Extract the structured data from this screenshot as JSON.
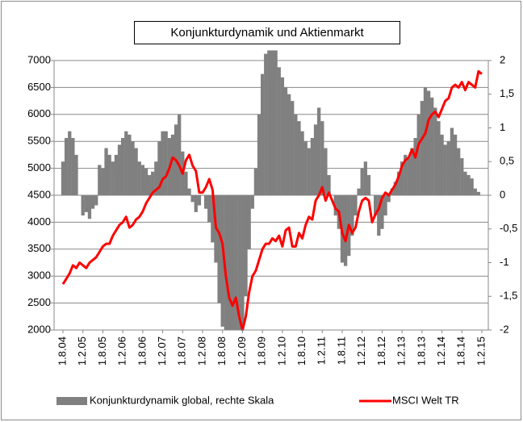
{
  "chart_data": {
    "type": "combo",
    "title": "Konjunkturdynamik und Aktienmarkt",
    "categories": [
      "1.8.04",
      null,
      null,
      null,
      null,
      null,
      "1.2.05",
      null,
      null,
      null,
      null,
      null,
      "1.8.05",
      null,
      null,
      null,
      null,
      null,
      "1.2.06",
      null,
      null,
      null,
      null,
      null,
      "1.8.06",
      null,
      null,
      null,
      null,
      null,
      "1.2.07",
      null,
      null,
      null,
      null,
      null,
      "1.8.07",
      null,
      null,
      null,
      null,
      null,
      "1.2.08",
      null,
      null,
      null,
      null,
      null,
      "1.8.08",
      null,
      null,
      null,
      null,
      null,
      "1.2.09",
      null,
      null,
      null,
      null,
      null,
      "1.8.09",
      null,
      null,
      null,
      null,
      null,
      "1.2.10",
      null,
      null,
      null,
      null,
      null,
      "1.8.10",
      null,
      null,
      null,
      null,
      null,
      "1.2.11",
      null,
      null,
      null,
      null,
      null,
      "1.8.11",
      null,
      null,
      null,
      null,
      null,
      "1.2.12",
      null,
      null,
      null,
      null,
      null,
      "1.8.12",
      null,
      null,
      null,
      null,
      null,
      "1.2.13",
      null,
      null,
      null,
      null,
      null,
      "1.8.13",
      null,
      null,
      null,
      null,
      null,
      "1.2.14",
      null,
      null,
      null,
      null,
      null,
      "1.8.14",
      null,
      null,
      null,
      null,
      null,
      "1.2.15"
    ],
    "series": [
      {
        "name": "Konjunkturdynamik global, rechte Skala",
        "type": "bar",
        "axis": "y2",
        "color": "#808080",
        "values": [
          0.5,
          0.85,
          0.95,
          0.85,
          0.6,
          0.0,
          -0.3,
          -0.25,
          -0.35,
          -0.2,
          -0.15,
          0.45,
          0.4,
          0.7,
          0.6,
          0.5,
          0.6,
          0.75,
          0.85,
          0.95,
          0.9,
          0.8,
          0.7,
          0.5,
          0.45,
          0.4,
          0.3,
          0.35,
          0.5,
          0.8,
          0.95,
          0.95,
          0.85,
          0.9,
          1.05,
          1.2,
          0.65,
          0.35,
          0.1,
          -0.1,
          -0.25,
          -0.15,
          0.0,
          -0.2,
          -0.4,
          -0.7,
          -1.0,
          -1.6,
          -1.95,
          -2.0,
          -2.0,
          -2.0,
          -2.0,
          -2.0,
          -2.0,
          -1.5,
          -0.8,
          -0.2,
          0.4,
          1.2,
          1.8,
          2.1,
          2.15,
          2.15,
          2.15,
          1.9,
          1.75,
          1.6,
          1.5,
          1.4,
          1.2,
          1.1,
          0.95,
          0.8,
          0.7,
          0.85,
          1.05,
          1.3,
          1.1,
          0.7,
          0.3,
          0.0,
          -0.3,
          -0.5,
          -1.0,
          -1.05,
          -0.9,
          -0.6,
          -0.3,
          0.1,
          0.4,
          0.5,
          0.3,
          0.0,
          -0.3,
          -0.6,
          -0.5,
          -0.3,
          -0.1,
          0.1,
          0.2,
          0.35,
          0.5,
          0.6,
          0.55,
          0.7,
          0.85,
          1.2,
          1.4,
          1.6,
          1.55,
          1.45,
          1.3,
          1.1,
          0.9,
          0.75,
          0.8,
          1.0,
          0.9,
          0.7,
          0.55,
          0.35,
          0.3,
          0.25,
          0.1,
          0.05,
          0.0
        ]
      },
      {
        "name": "MSCI Welt TR",
        "type": "line",
        "axis": "y",
        "color": "#ff0000",
        "values": [
          2850,
          2950,
          3050,
          3200,
          3150,
          3250,
          3200,
          3150,
          3250,
          3300,
          3350,
          3450,
          3550,
          3600,
          3600,
          3750,
          3850,
          3950,
          4000,
          4100,
          3900,
          3950,
          4050,
          4100,
          4200,
          4350,
          4450,
          4550,
          4600,
          4650,
          4800,
          4850,
          5000,
          5200,
          5150,
          5050,
          4900,
          5150,
          5250,
          5050,
          4950,
          4550,
          4550,
          4650,
          4800,
          4600,
          3900,
          3800,
          3600,
          3000,
          2600,
          2450,
          2600,
          2250,
          2000,
          2250,
          2700,
          3000,
          3100,
          3300,
          3500,
          3600,
          3600,
          3700,
          3650,
          3750,
          3550,
          3850,
          3900,
          3550,
          3550,
          3800,
          3700,
          3950,
          4100,
          4050,
          4400,
          4500,
          4650,
          4400,
          4550,
          4400,
          4250,
          4200,
          3800,
          3650,
          3950,
          3800,
          3900,
          4200,
          4400,
          4450,
          4400,
          4000,
          4150,
          4250,
          4450,
          4550,
          4500,
          4600,
          4700,
          4850,
          5050,
          5150,
          5200,
          5350,
          5200,
          5450,
          5550,
          5650,
          5900,
          6000,
          6050,
          5950,
          6100,
          6250,
          6300,
          6500,
          6550,
          6500,
          6600,
          6450,
          6600,
          6550,
          6500,
          6800,
          6750
        ]
      }
    ],
    "ylim": [
      2000,
      7000
    ],
    "yticks": [
      2000,
      2500,
      3000,
      3500,
      4000,
      4500,
      5000,
      5500,
      6000,
      6500,
      7000
    ],
    "y2lim": [
      -2,
      2
    ],
    "y2ticks": [
      -2,
      {
        "value": -1.5,
        "label": "-1,5"
      },
      -1,
      {
        "value": -0.5,
        "label": "-0,5"
      },
      0,
      {
        "value": 0.5,
        "label": "0,5"
      },
      1,
      {
        "value": 1.5,
        "label": "1,5"
      },
      2
    ],
    "grid": true
  }
}
